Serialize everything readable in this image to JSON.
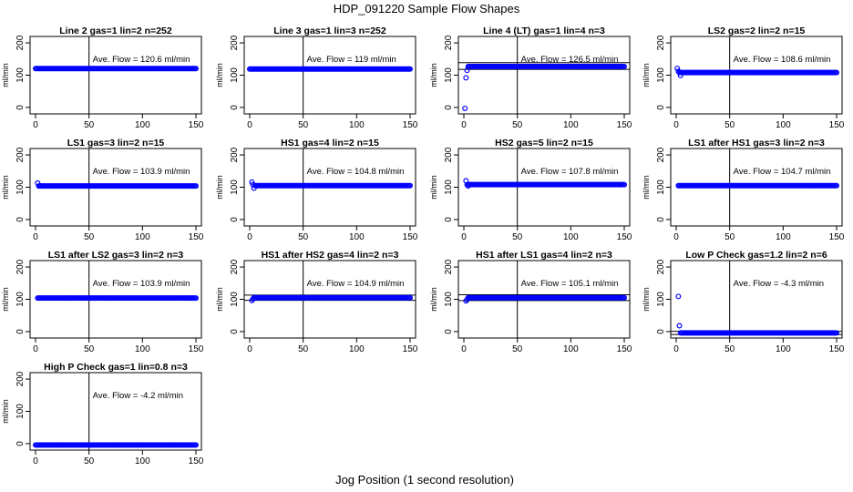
{
  "figure": {
    "title": "HDP_091220  Sample Flow Shapes",
    "xlabel": "Jog Position (1 second resolution)",
    "colors": {
      "points": "#0000ff",
      "axes": "#000000",
      "background": "#ffffff"
    }
  },
  "chart_data": [
    {
      "type": "scatter",
      "title": "Line 2 gas=1 lin=2 n=252",
      "ylabel": "ml/min",
      "annotation": "Ave. Flow =  120.6  ml/min",
      "xlim": [
        0,
        150
      ],
      "ylim": [
        -20,
        220
      ],
      "xticks": [
        0,
        50,
        100,
        150
      ],
      "yticks": [
        0,
        100,
        200
      ],
      "vline": 50,
      "hlines": [],
      "series": [
        {
          "x_range": [
            0,
            150
          ],
          "y": 120.6,
          "start": []
        }
      ]
    },
    {
      "type": "scatter",
      "title": "Line 3 gas=1 lin=3 n=252",
      "ylabel": "ml/min",
      "annotation": "Ave. Flow =  119  ml/min",
      "xlim": [
        0,
        150
      ],
      "ylim": [
        -20,
        220
      ],
      "xticks": [
        0,
        50,
        100,
        150
      ],
      "yticks": [
        0,
        100,
        200
      ],
      "vline": 50,
      "hlines": [],
      "series": [
        {
          "x_range": [
            0,
            150
          ],
          "y": 119,
          "start": []
        }
      ]
    },
    {
      "type": "scatter",
      "title": "Line 4 (LT) gas=1 lin=4 n=3",
      "ylabel": "ml/min",
      "annotation": "Ave. Flow =  126.5  ml/min",
      "xlim": [
        0,
        150
      ],
      "ylim": [
        -20,
        220
      ],
      "xticks": [
        0,
        50,
        100,
        150
      ],
      "yticks": [
        0,
        100,
        200
      ],
      "vline": 50,
      "hlines": [
        118,
        139
      ],
      "series": [
        {
          "x_range": [
            4,
            150
          ],
          "y": 127,
          "start": [
            [
              1,
              -3
            ],
            [
              2,
              92
            ],
            [
              3,
              115
            ]
          ]
        }
      ]
    },
    {
      "type": "scatter",
      "title": "LS2 gas=2 lin=2 n=15",
      "ylabel": "ml/min",
      "annotation": "Ave. Flow =  108.6  ml/min",
      "xlim": [
        0,
        150
      ],
      "ylim": [
        -20,
        220
      ],
      "xticks": [
        0,
        50,
        100,
        150
      ],
      "yticks": [
        0,
        100,
        200
      ],
      "vline": 50,
      "hlines": [],
      "series": [
        {
          "x_range": [
            3,
            150
          ],
          "y": 108,
          "start": [
            [
              1,
              121
            ],
            [
              2,
              112
            ],
            [
              4,
              99
            ]
          ]
        }
      ]
    },
    {
      "type": "scatter",
      "title": "LS1 gas=3 lin=2 n=15",
      "ylabel": "ml/min",
      "annotation": "Ave. Flow =  103.9  ml/min",
      "xlim": [
        0,
        150
      ],
      "ylim": [
        -20,
        220
      ],
      "xticks": [
        0,
        50,
        100,
        150
      ],
      "yticks": [
        0,
        100,
        200
      ],
      "vline": 50,
      "hlines": [],
      "series": [
        {
          "x_range": [
            3,
            150
          ],
          "y": 104,
          "start": [
            [
              2,
              113
            ]
          ]
        }
      ]
    },
    {
      "type": "scatter",
      "title": "HS1 gas=4 lin=2 n=15",
      "ylabel": "ml/min",
      "annotation": "Ave. Flow =  104.8  ml/min",
      "xlim": [
        0,
        150
      ],
      "ylim": [
        -20,
        220
      ],
      "xticks": [
        0,
        50,
        100,
        150
      ],
      "yticks": [
        0,
        100,
        200
      ],
      "vline": 50,
      "hlines": [],
      "series": [
        {
          "x_range": [
            5,
            150
          ],
          "y": 105,
          "start": [
            [
              2,
              116
            ],
            [
              3,
              108
            ],
            [
              4,
              97
            ]
          ]
        }
      ]
    },
    {
      "type": "scatter",
      "title": "HS2 gas=5 lin=2 n=15",
      "ylabel": "ml/min",
      "annotation": "Ave. Flow =  107.8  ml/min",
      "xlim": [
        0,
        150
      ],
      "ylim": [
        -20,
        220
      ],
      "xticks": [
        0,
        50,
        100,
        150
      ],
      "yticks": [
        0,
        100,
        200
      ],
      "vline": 50,
      "hlines": [],
      "series": [
        {
          "x_range": [
            3,
            150
          ],
          "y": 108,
          "start": [
            [
              2,
              120
            ],
            [
              4,
              104
            ]
          ]
        }
      ]
    },
    {
      "type": "scatter",
      "title": "LS1 after HS1 gas=3 lin=2 n=3",
      "ylabel": "ml/min",
      "annotation": "Ave. Flow =  104.7  ml/min",
      "xlim": [
        0,
        150
      ],
      "ylim": [
        -20,
        220
      ],
      "xticks": [
        0,
        50,
        100,
        150
      ],
      "yticks": [
        0,
        100,
        200
      ],
      "vline": 50,
      "hlines": [],
      "series": [
        {
          "x_range": [
            2,
            150
          ],
          "y": 105,
          "start": []
        }
      ]
    },
    {
      "type": "scatter",
      "title": "LS1 after LS2 gas=3 lin=2 n=3",
      "ylabel": "ml/min",
      "annotation": "Ave. Flow =  103.9  ml/min",
      "xlim": [
        0,
        150
      ],
      "ylim": [
        -20,
        220
      ],
      "xticks": [
        0,
        50,
        100,
        150
      ],
      "yticks": [
        0,
        100,
        200
      ],
      "vline": 50,
      "hlines": [],
      "series": [
        {
          "x_range": [
            2,
            150
          ],
          "y": 104,
          "start": []
        }
      ]
    },
    {
      "type": "scatter",
      "title": "HS1 after HS2 gas=4 lin=2 n=3",
      "ylabel": "ml/min",
      "annotation": "Ave. Flow =  104.9  ml/min",
      "xlim": [
        0,
        150
      ],
      "ylim": [
        -20,
        220
      ],
      "xticks": [
        0,
        50,
        100,
        150
      ],
      "yticks": [
        0,
        100,
        200
      ],
      "vline": 50,
      "hlines": [
        97,
        113
      ],
      "series": [
        {
          "x_range": [
            4,
            150
          ],
          "y": 105,
          "start": [
            [
              2,
              96
            ],
            [
              3,
              101
            ]
          ]
        }
      ]
    },
    {
      "type": "scatter",
      "title": "HS1 after LS1 gas=4 lin=2 n=3",
      "ylabel": "ml/min",
      "annotation": "Ave. Flow =  105.1  ml/min",
      "xlim": [
        0,
        150
      ],
      "ylim": [
        -20,
        220
      ],
      "xticks": [
        0,
        50,
        100,
        150
      ],
      "yticks": [
        0,
        100,
        200
      ],
      "vline": 50,
      "hlines": [
        96,
        114
      ],
      "series": [
        {
          "x_range": [
            4,
            150
          ],
          "y": 105,
          "start": [
            [
              2,
              95
            ],
            [
              3,
              99
            ]
          ]
        }
      ]
    },
    {
      "type": "scatter",
      "title": "Low P Check gas=1.2 lin=2 n=6",
      "ylabel": "ml/min",
      "annotation": "Ave. Flow =  -4.3  ml/min",
      "xlim": [
        0,
        150
      ],
      "ylim": [
        -20,
        220
      ],
      "xticks": [
        0,
        50,
        100,
        150
      ],
      "yticks": [
        0,
        100,
        200
      ],
      "vline": 50,
      "hlines": [
        -9,
        1
      ],
      "series": [
        {
          "x_range": [
            4,
            150
          ],
          "y": -4,
          "start": [
            [
              2,
              109
            ],
            [
              3,
              18
            ]
          ]
        }
      ]
    },
    {
      "type": "scatter",
      "title": "High P Check gas=1 lin=0.8 n=3",
      "ylabel": "ml/min",
      "annotation": "Ave. Flow =  -4.2  ml/min",
      "xlim": [
        0,
        150
      ],
      "ylim": [
        -20,
        220
      ],
      "xticks": [
        0,
        50,
        100,
        150
      ],
      "yticks": [
        0,
        100,
        200
      ],
      "vline": 50,
      "hlines": [],
      "series": [
        {
          "x_range": [
            0,
            150
          ],
          "y": -4,
          "start": []
        }
      ]
    }
  ]
}
